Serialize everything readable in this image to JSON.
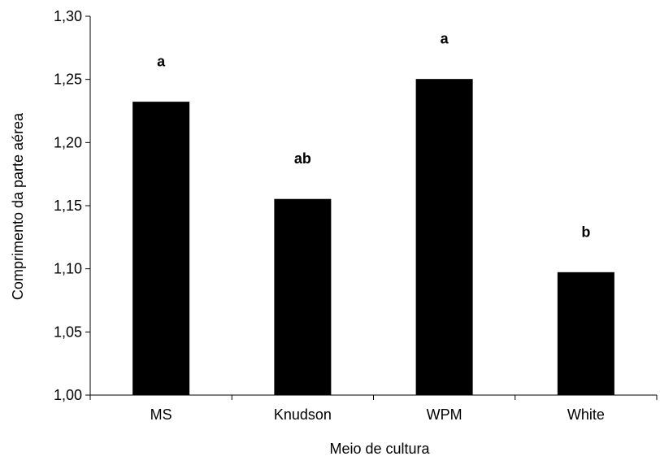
{
  "chart_data": {
    "type": "bar",
    "categories": [
      "MS",
      "Knudson",
      "WPM",
      "White"
    ],
    "series": [
      {
        "values": [
          1.232,
          1.155,
          1.25,
          1.097
        ],
        "color": "#000000"
      }
    ],
    "data_labels": [
      "a",
      "ab",
      "a",
      "b"
    ],
    "xlabel": "Meio de cultura",
    "ylabel": "Comprimento da parte aérea",
    "ylim": [
      1.0,
      1.3
    ],
    "yticks": [
      1.0,
      1.05,
      1.1,
      1.15,
      1.2,
      1.25,
      1.3
    ],
    "ytick_labels": [
      "1,00",
      "1,05",
      "1,10",
      "1,15",
      "1,20",
      "1,25",
      "1,30"
    ],
    "grid": false,
    "legend": "none"
  }
}
